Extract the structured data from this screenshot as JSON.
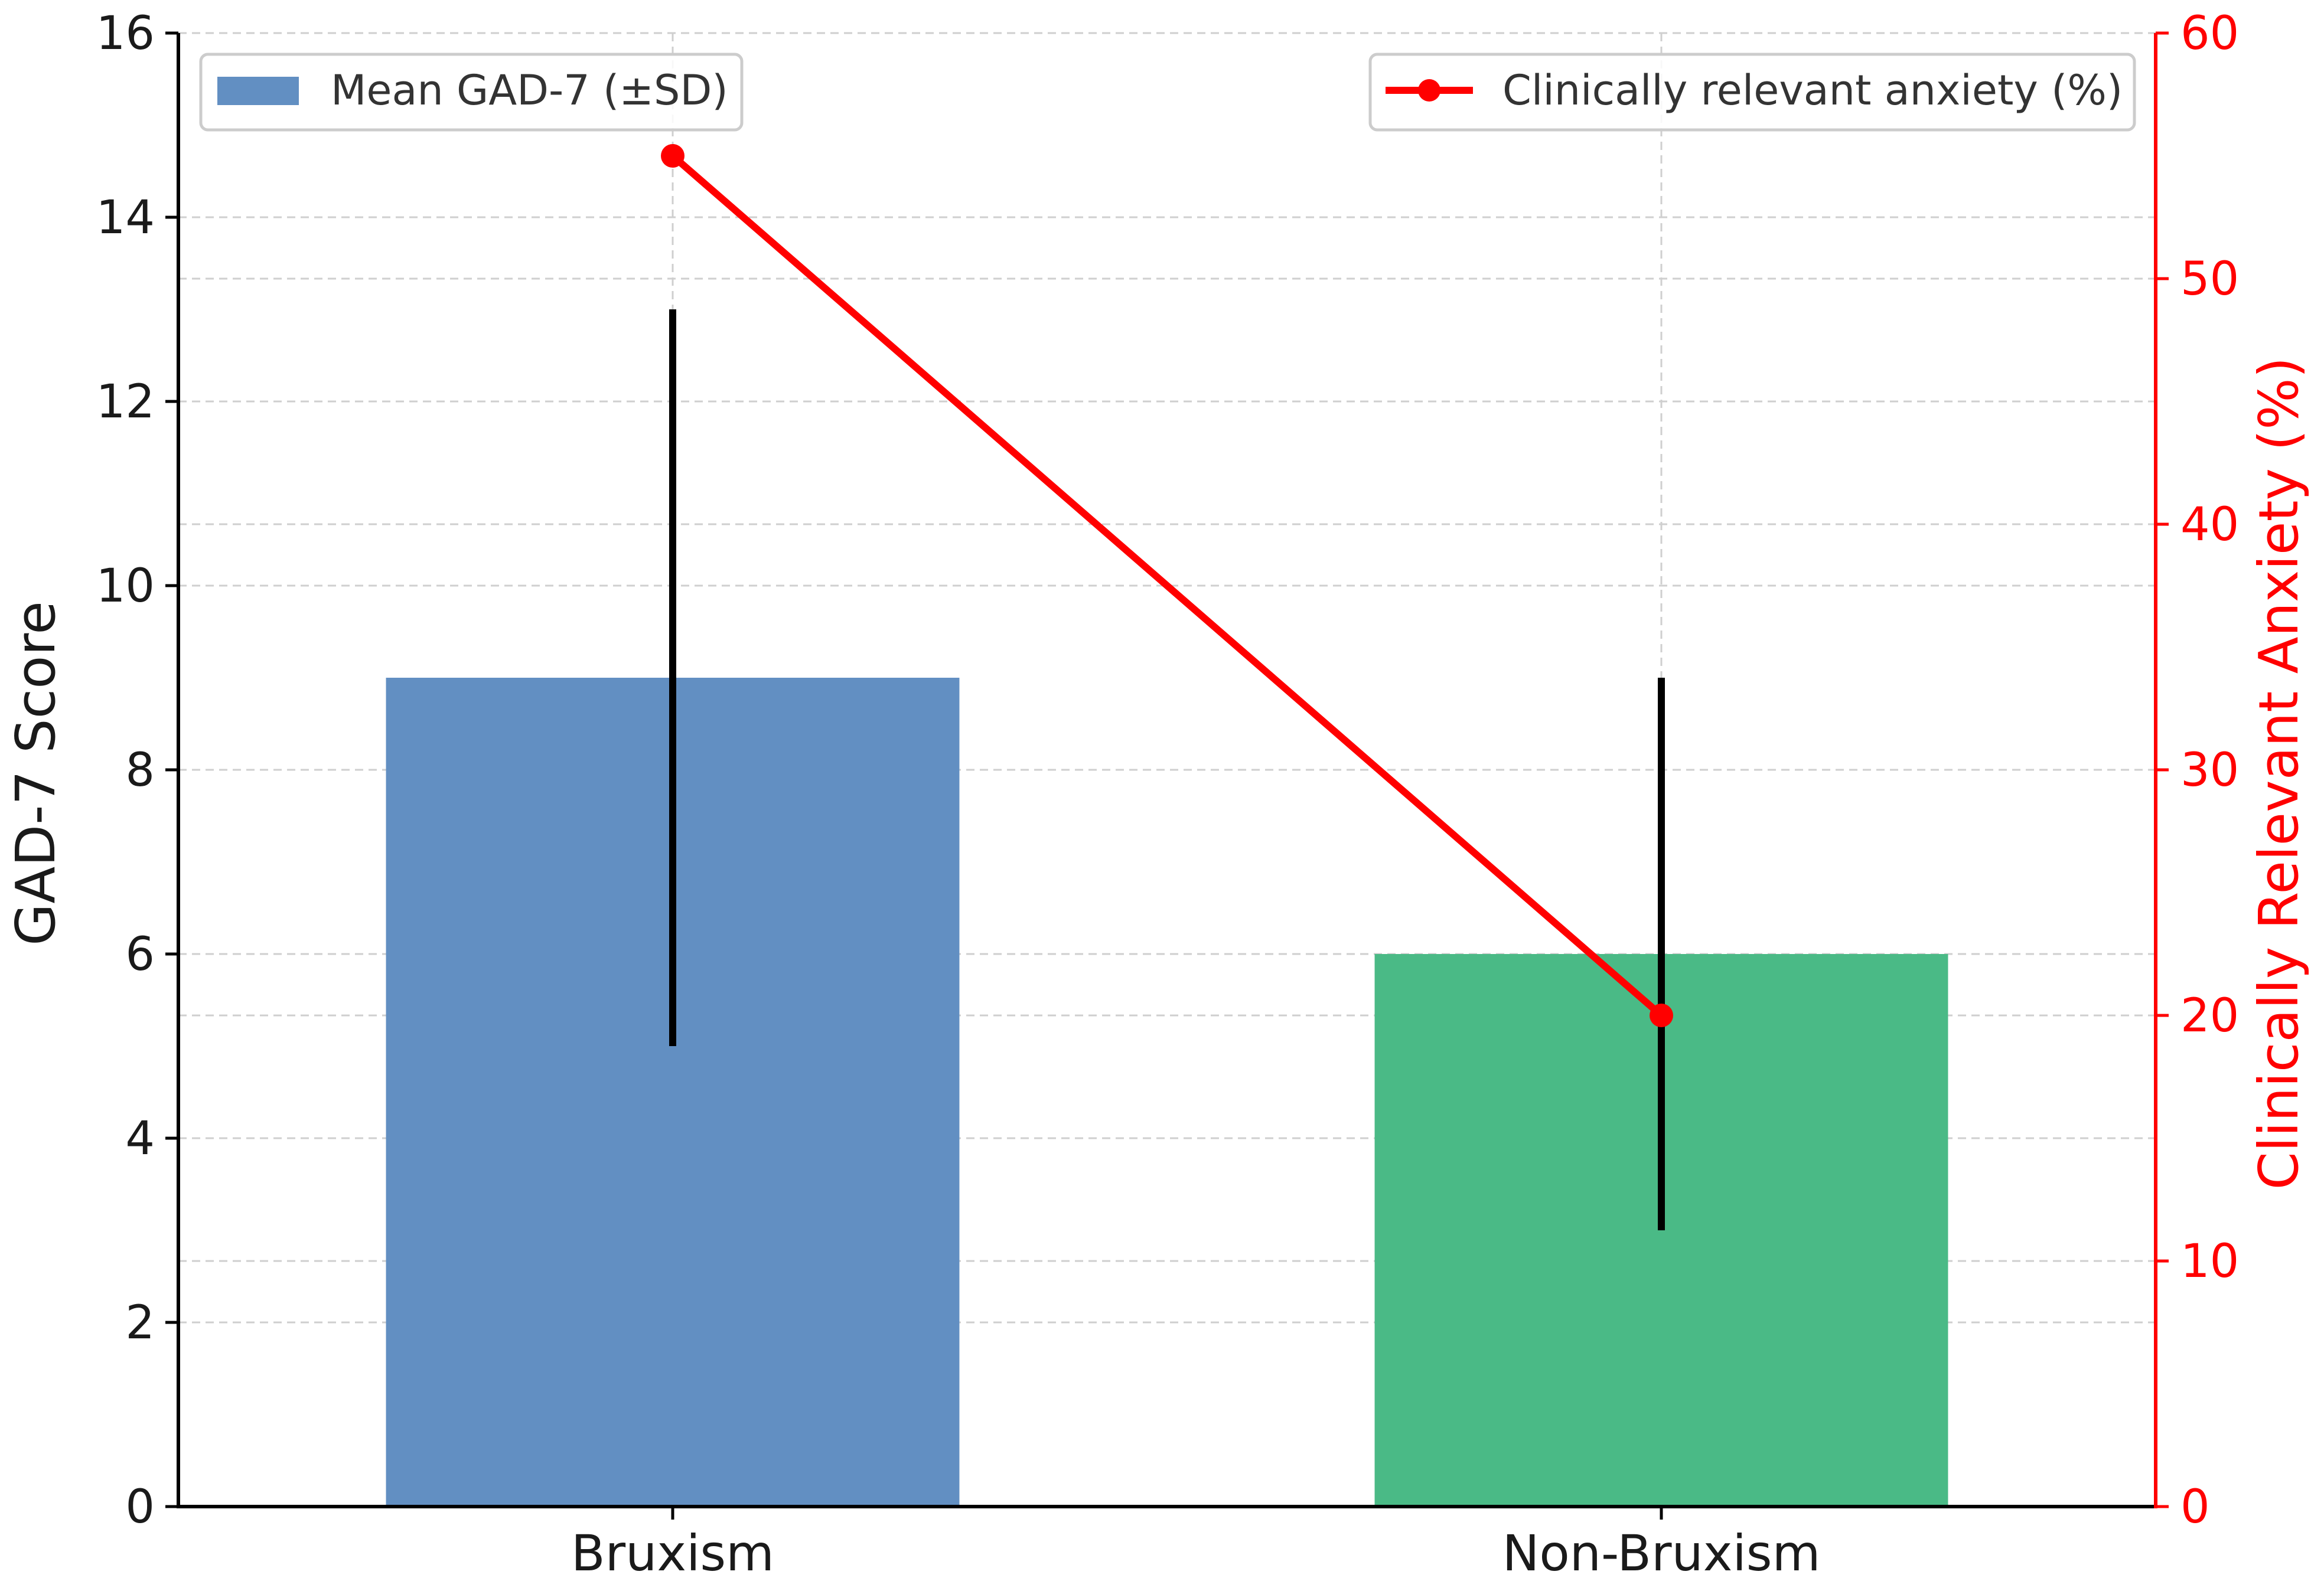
{
  "chart_data": {
    "type": "bar",
    "title": "",
    "categories": [
      "Bruxism",
      "Non-Bruxism"
    ],
    "bar_series": {
      "name": "Mean GAD-7 (±SD)",
      "values": [
        9,
        6
      ],
      "sd": [
        4,
        3
      ],
      "colors": [
        "#628fc2",
        "#4aba86"
      ]
    },
    "line_series": {
      "name": "Clinically relevant anxiety (%)",
      "values": [
        55,
        20
      ],
      "color": "#ff0000",
      "marker": "circle"
    },
    "ylabel": "GAD-7 Score",
    "ylim": [
      0,
      16
    ],
    "yticks": [
      "0",
      "2",
      "4",
      "6",
      "8",
      "10",
      "12",
      "14",
      "16"
    ],
    "y2label": "Clinically Relevant Anxiety (%)",
    "y2lim": [
      0,
      60
    ],
    "y2ticks": [
      "0",
      "10",
      "20",
      "30",
      "40",
      "50",
      "60"
    ],
    "grid": true,
    "legend_positions": [
      "top-left",
      "top-right"
    ]
  }
}
